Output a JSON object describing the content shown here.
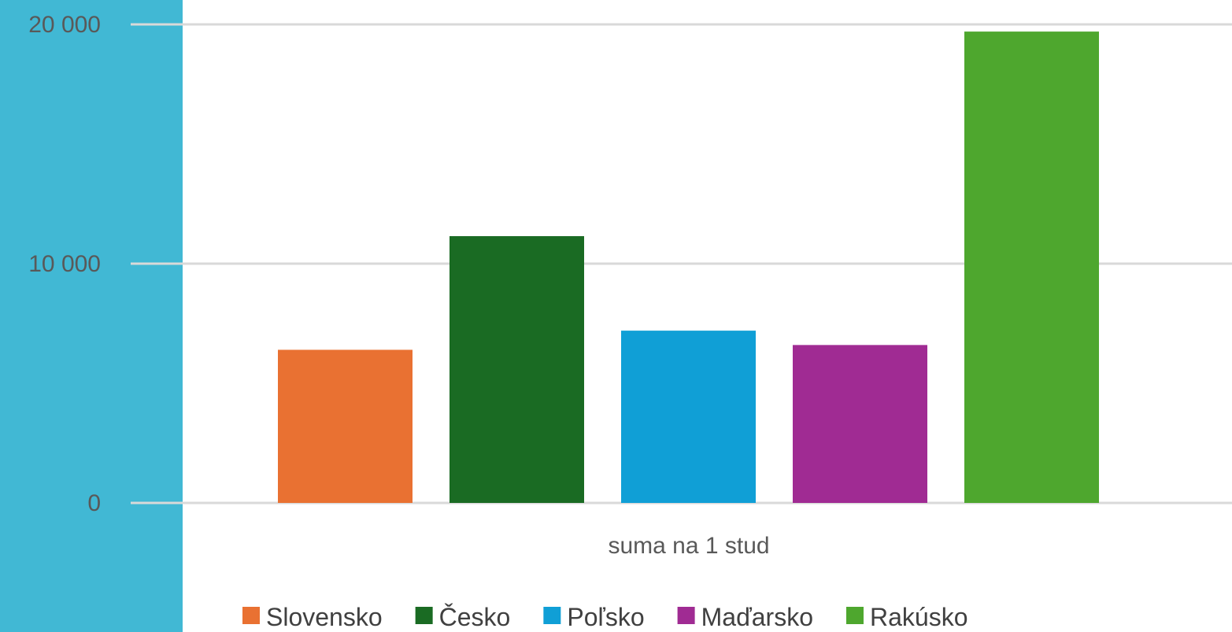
{
  "chart_data": {
    "type": "bar",
    "categories": [
      "suma na 1 stud"
    ],
    "series": [
      {
        "name": "Slovensko",
        "values": [
          6400
        ],
        "color": "#e97132"
      },
      {
        "name": "Česko",
        "values": [
          11150
        ],
        "color": "#1a6b23"
      },
      {
        "name": "Poľsko",
        "values": [
          7200
        ],
        "color": "#109fd6"
      },
      {
        "name": "Maďarsko",
        "values": [
          6600
        ],
        "color": "#a02b93"
      },
      {
        "name": "Rakúsko",
        "values": [
          19700
        ],
        "color": "#4ea72e"
      }
    ],
    "yticks": [
      "0",
      "10 000",
      "20 000"
    ],
    "ytick_values": [
      0,
      10000,
      20000
    ],
    "ylim": [
      0,
      20000
    ],
    "grid": true,
    "legend_position": "bottom"
  },
  "colors": {
    "side_panel": "#41b8d4",
    "gridline": "#d9d9d9"
  }
}
